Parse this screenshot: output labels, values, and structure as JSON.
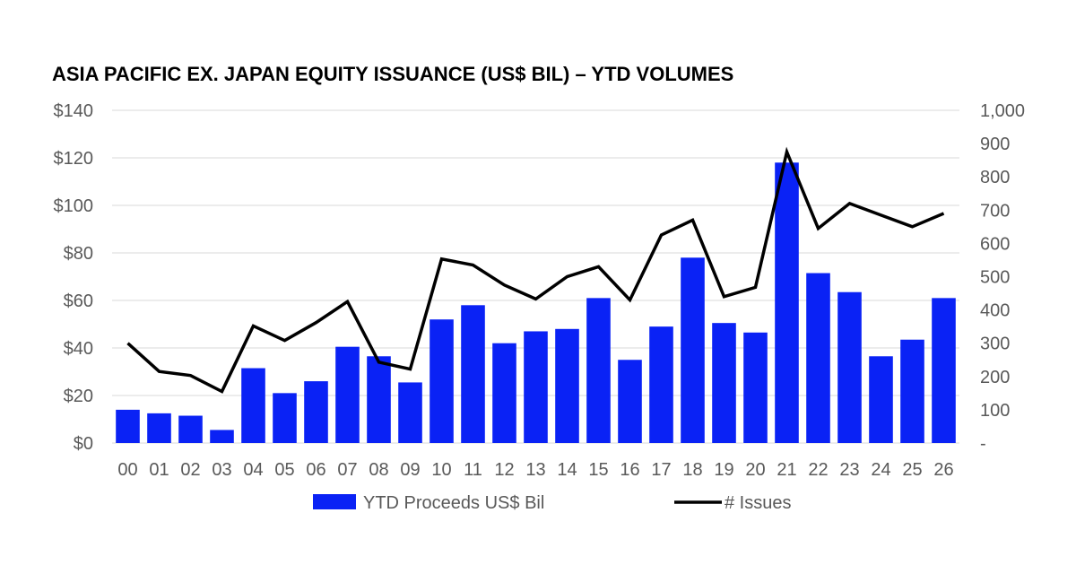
{
  "title": "ASIA PACIFIC EX. JAPAN EQUITY ISSUANCE (US$ BIL) – YTD VOLUMES",
  "colors": {
    "bar": "#0a22f5",
    "line": "#000000",
    "grid": "#d9d9d9",
    "text": "#595959"
  },
  "chart_data": {
    "type": "bar",
    "title": "ASIA PACIFIC EX. JAPAN EQUITY ISSUANCE (US$ BIL) – YTD VOLUMES",
    "categories": [
      "00",
      "01",
      "02",
      "03",
      "04",
      "05",
      "06",
      "07",
      "08",
      "09",
      "10",
      "11",
      "12",
      "13",
      "14",
      "15",
      "16",
      "17",
      "18",
      "19",
      "20",
      "21",
      "22",
      "23",
      "24",
      "25",
      "26"
    ],
    "series": [
      {
        "name": "YTD Proceeds US$ Bil",
        "type": "bar",
        "axis": "left",
        "values": [
          14,
          12.5,
          11.5,
          5.5,
          31.5,
          21,
          26,
          40.5,
          36.5,
          25.5,
          52,
          58,
          42,
          47,
          48,
          61,
          35,
          49,
          78,
          50.5,
          46.5,
          118,
          71.5,
          63.5,
          36.5,
          43.5,
          61
        ]
      },
      {
        "name": "# Issues",
        "type": "line",
        "axis": "right",
        "values": [
          300,
          215,
          203,
          155,
          352,
          308,
          362,
          425,
          243,
          222,
          553,
          535,
          475,
          433,
          500,
          530,
          430,
          625,
          670,
          440,
          468,
          875,
          645,
          720,
          685,
          650,
          690
        ]
      }
    ],
    "y_left": {
      "min": 0,
      "max": 140,
      "ticks": [
        "$0",
        "$20",
        "$40",
        "$60",
        "$80",
        "$100",
        "$120",
        "$140"
      ]
    },
    "y_right": {
      "min": 0,
      "max": 1000,
      "ticks": [
        "-",
        "100",
        "200",
        "300",
        "400",
        "500",
        "600",
        "700",
        "800",
        "900",
        "1,000"
      ]
    },
    "grid": true,
    "legend": "bottom-center"
  }
}
